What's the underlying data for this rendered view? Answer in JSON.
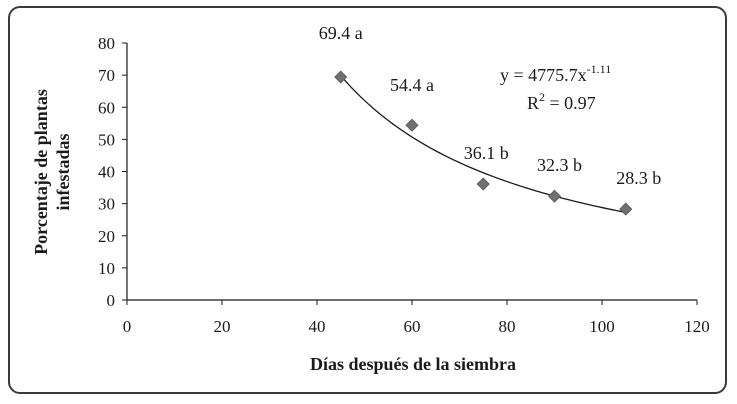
{
  "chart_data": {
    "type": "scatter",
    "xlabel": "Días después de la siembra",
    "ylabel": "Porcentaje de plantas infestadas",
    "ylabel_lines": [
      "Porcentaje de plantas",
      "infestadas"
    ],
    "xlim": [
      0,
      120
    ],
    "ylim": [
      0,
      80
    ],
    "xticks": [
      0,
      20,
      40,
      60,
      80,
      100,
      120
    ],
    "yticks": [
      0,
      10,
      20,
      30,
      40,
      50,
      60,
      70,
      80
    ],
    "grid": false,
    "points": [
      {
        "x": 45,
        "y": 69.4,
        "label": "69.4 a"
      },
      {
        "x": 60,
        "y": 54.4,
        "label": "54.4 a"
      },
      {
        "x": 75,
        "y": 36.1,
        "label": "36.1 b"
      },
      {
        "x": 90,
        "y": 32.3,
        "label": "32.3 b"
      },
      {
        "x": 105,
        "y": 28.3,
        "label": "28.3 b"
      }
    ],
    "trendline": {
      "type": "power",
      "a": 4775.7,
      "b": -1.11,
      "x_range": [
        45,
        105
      ],
      "equation_base": "y = 4775.7x",
      "equation_exp": "-1.11",
      "r2_base": "R",
      "r2_sup": "2",
      "r2_value": " = 0.97"
    },
    "marker_color": "#707070",
    "line_color": "#1a1a1a"
  }
}
